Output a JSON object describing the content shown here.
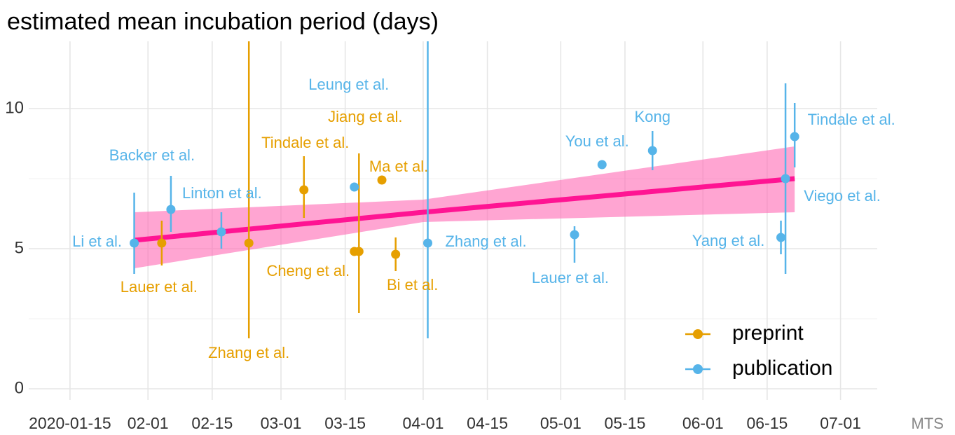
{
  "chart_data": {
    "type": "scatter",
    "title": "estimated mean incubation period (days)",
    "caption": "MTS",
    "xlim": [
      "2020-01-06",
      "2020-07-09"
    ],
    "xticks": [
      {
        "value": "2020-01-15",
        "label": "2020-01-15"
      },
      {
        "value": "2020-02-01",
        "label": "02-01"
      },
      {
        "value": "2020-02-15",
        "label": "02-15"
      },
      {
        "value": "2020-03-01",
        "label": "03-01"
      },
      {
        "value": "2020-03-15",
        "label": "03-15"
      },
      {
        "value": "2020-04-01",
        "label": "04-01"
      },
      {
        "value": "2020-04-15",
        "label": "04-15"
      },
      {
        "value": "2020-05-01",
        "label": "05-01"
      },
      {
        "value": "2020-05-15",
        "label": "05-15"
      },
      {
        "value": "2020-06-01",
        "label": "06-01"
      },
      {
        "value": "2020-06-15",
        "label": "06-15"
      },
      {
        "value": "2020-07-01",
        "label": "07-01"
      }
    ],
    "ylim": [
      -0.4,
      12.4
    ],
    "yticks": [
      0,
      5,
      10
    ],
    "grid": true,
    "legend": "bottom right",
    "series": [
      {
        "name": "preprint",
        "color": "#E69F00",
        "labels": [
          "Lauer et al.",
          "Zhang et al.",
          "Tindale et al.",
          "Cheng et al.",
          "Jiang et al.",
          "Ma et al.",
          "Bi et al."
        ],
        "x": [
          "2020-02-04",
          "2020-02-23",
          "2020-03-06",
          "2020-03-17",
          "2020-03-18",
          "2020-03-23",
          "2020-03-26"
        ],
        "values": [
          5.2,
          5.2,
          7.1,
          4.9,
          4.9,
          7.45,
          4.8
        ],
        "low": [
          4.4,
          1.8,
          6.1,
          null,
          2.7,
          null,
          4.2
        ],
        "high": [
          6.0,
          12.6,
          8.3,
          null,
          8.4,
          null,
          5.4
        ]
      },
      {
        "name": "publication",
        "color": "#56B4E9",
        "labels": [
          "Li et al.",
          "Backer et al.",
          "Linton et al.",
          "Leung et al.",
          "Zhang et al.",
          "Lauer et al.",
          "You et al.",
          "Kong",
          "Yang et al.",
          "Viego et al.",
          "Tindale et al."
        ],
        "x": [
          "2020-01-29",
          "2020-02-06",
          "2020-02-17",
          "2020-03-17",
          "2020-04-02",
          "2020-05-04",
          "2020-05-10",
          "2020-05-21",
          "2020-06-18",
          "2020-06-19",
          "2020-06-21"
        ],
        "values": [
          5.2,
          6.4,
          5.6,
          7.2,
          5.2,
          5.5,
          8.0,
          8.5,
          5.4,
          7.5,
          9.0
        ],
        "low": [
          4.1,
          5.6,
          5.0,
          null,
          1.8,
          4.5,
          null,
          7.8,
          4.8,
          4.1,
          7.9
        ],
        "high": [
          7.0,
          7.6,
          6.3,
          null,
          12.6,
          5.8,
          null,
          9.2,
          6.0,
          10.9,
          10.2
        ]
      }
    ],
    "trend": {
      "color": "#FF1493",
      "band_color": "#FF69B4",
      "x": [
        "2020-01-29",
        "2020-04-01",
        "2020-06-21"
      ],
      "values": [
        5.3,
        6.3,
        7.5
      ],
      "lower": [
        4.3,
        5.95,
        6.3
      ],
      "upper": [
        6.3,
        6.75,
        8.65
      ]
    }
  }
}
